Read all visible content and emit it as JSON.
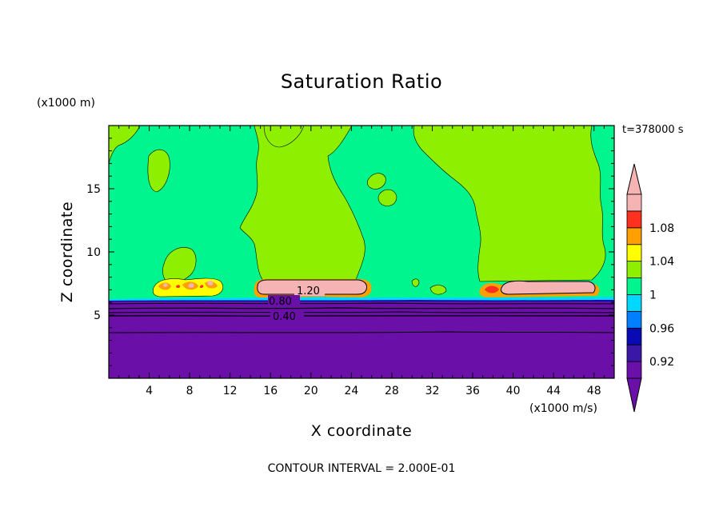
{
  "title": "Saturation Ratio",
  "y_unit": "(x1000 m)",
  "x_unit": "(x1000 m/s)",
  "time_label": "t=378000 s",
  "xlabel": "X coordinate",
  "ylabel": "Z coordinate",
  "contour_interval": "CONTOUR INTERVAL = 2.000E-01",
  "chart_data": {
    "type": "heatmap",
    "title": "Saturation Ratio",
    "xlabel": "X coordinate",
    "ylabel": "Z coordinate",
    "x_unit": "(x1000 m/s)",
    "y_unit": "(x1000 m)",
    "xlim": [
      0,
      50
    ],
    "ylim": [
      0,
      20
    ],
    "x_ticks": [
      4,
      8,
      12,
      16,
      20,
      24,
      28,
      32,
      36,
      40,
      44,
      48
    ],
    "y_ticks": [
      5,
      10,
      15
    ],
    "colorbar": {
      "levels": [
        0.9,
        0.92,
        0.94,
        0.96,
        0.98,
        1.0,
        1.02,
        1.04,
        1.06,
        1.08,
        1.1
      ],
      "labels": [
        "0.92",
        "0.96",
        "1",
        "1.04",
        "1.08"
      ],
      "colors": [
        "#6a0fa8",
        "#3b17a6",
        "#0a0ab5",
        "#0080ff",
        "#00d8ff",
        "#00f58f",
        "#8ef000",
        "#ffff00",
        "#ffa000",
        "#ff3020",
        "#f5b3b3"
      ],
      "extend": "both"
    },
    "contour_labels": [
      {
        "value": "1.20",
        "x": 20,
        "z": 7.0
      },
      {
        "value": "0.80",
        "x": 16.8,
        "z": 6.1
      },
      {
        "value": "0.40",
        "x": 17.8,
        "z": 5.0
      }
    ],
    "regions": [
      {
        "level": "0.90 (below)",
        "z_range": [
          0,
          6.4
        ]
      },
      {
        "level": "0.98-1.00",
        "description_z": [
          6.4,
          20
        ]
      },
      {
        "level": "1.10+",
        "x_range": [
          15,
          25
        ],
        "z_range": [
          6.9,
          7.9
        ]
      },
      {
        "level": "1.10+",
        "x_range": [
          39,
          47
        ],
        "z_range": [
          6.9,
          7.7
        ]
      }
    ],
    "contour_interval": 0.2,
    "time": "t=378000 s"
  }
}
